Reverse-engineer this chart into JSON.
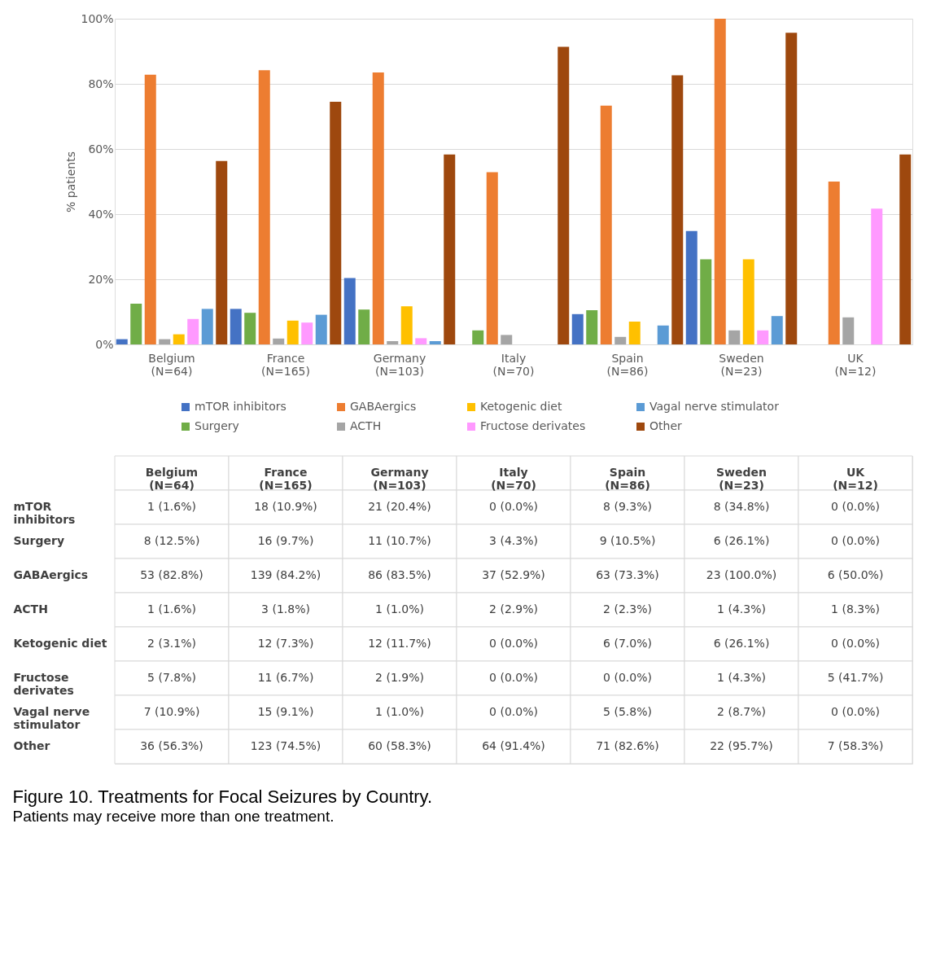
{
  "chart_data": {
    "type": "bar",
    "title": "Figure 10. Treatments for Focal Seizures by Country.",
    "subtitle": "Patients may receive more than one treatment.",
    "ylabel": "% patients",
    "categories": [
      "Belgium (N=64)",
      "France (N=165)",
      "Germany (N=103)",
      "Italy (N=70)",
      "Spain (N=86)",
      "Sweden (N=23)",
      "UK (N=12)"
    ],
    "series": [
      {
        "name": "mTOR inhibitors",
        "color": "#4472c4",
        "values": [
          1.6,
          10.9,
          20.4,
          0.0,
          9.3,
          34.8,
          0.0
        ],
        "value_labels": [
          "1 (1.6%)",
          "18 (10.9%)",
          "21 (20.4%)",
          "0 (0.0%)",
          "8 (9.3%)",
          "8 (34.8%)",
          "0 (0.0%)"
        ]
      },
      {
        "name": "Surgery",
        "color": "#70ad47",
        "values": [
          12.5,
          9.7,
          10.7,
          4.3,
          10.5,
          26.1,
          0.0
        ],
        "value_labels": [
          "8 (12.5%)",
          "16 (9.7%)",
          "11 (10.7%)",
          "3 (4.3%)",
          "9 (10.5%)",
          "6 (26.1%)",
          "0 (0.0%)"
        ]
      },
      {
        "name": "GABAergics",
        "color": "#ed7d31",
        "values": [
          82.8,
          84.2,
          83.5,
          52.9,
          73.3,
          100.0,
          50.0
        ],
        "value_labels": [
          "53 (82.8%)",
          "139 (84.2%)",
          "86 (83.5%)",
          "37 (52.9%)",
          "63 (73.3%)",
          "23 (100.0%)",
          "6 (50.0%)"
        ]
      },
      {
        "name": "ACTH",
        "color": "#a5a5a5",
        "values": [
          1.6,
          1.8,
          1.0,
          2.9,
          2.3,
          4.3,
          8.3
        ],
        "value_labels": [
          "1 (1.6%)",
          "3 (1.8%)",
          "1 (1.0%)",
          "2 (2.9%)",
          "2 (2.3%)",
          "1 (4.3%)",
          "1 (8.3%)"
        ]
      },
      {
        "name": "Ketogenic diet",
        "color": "#ffc000",
        "values": [
          3.1,
          7.3,
          11.7,
          0.0,
          7.0,
          26.1,
          0.0
        ],
        "value_labels": [
          "2 (3.1%)",
          "12 (7.3%)",
          "12 (11.7%)",
          "0 (0.0%)",
          "6 (7.0%)",
          "6 (26.1%)",
          "0 (0.0%)"
        ]
      },
      {
        "name": "Fructose derivates",
        "color": "#ff99ff",
        "values": [
          7.8,
          6.7,
          1.9,
          0.0,
          0.0,
          4.3,
          41.7
        ],
        "value_labels": [
          "5 (7.8%)",
          "11 (6.7%)",
          "2 (1.9%)",
          "0 (0.0%)",
          "0 (0.0%)",
          "1 (4.3%)",
          "5 (41.7%)"
        ]
      },
      {
        "name": "Vagal nerve stimulator",
        "color": "#5b9bd5",
        "values": [
          10.9,
          9.1,
          1.0,
          0.0,
          5.8,
          8.7,
          0.0
        ],
        "value_labels": [
          "7 (10.9%)",
          "15 (9.1%)",
          "1 (1.0%)",
          "0 (0.0%)",
          "5 (5.8%)",
          "2 (8.7%)",
          "0 (0.0%)"
        ]
      },
      {
        "name": "Other",
        "color": "#9e480e",
        "values": [
          56.3,
          74.5,
          58.3,
          91.4,
          82.6,
          95.7,
          58.3
        ],
        "value_labels": [
          "36 (56.3%)",
          "123 (74.5%)",
          "60 (58.3%)",
          "64 (91.4%)",
          "71 (82.6%)",
          "22 (95.7%)",
          "7 (58.3%)"
        ]
      }
    ],
    "ylim": [
      0,
      100
    ],
    "yticks": [
      {
        "value": 0,
        "label": "0%"
      },
      {
        "value": 20,
        "label": "20%"
      },
      {
        "value": 40,
        "label": "40%"
      },
      {
        "value": 60,
        "label": "60%"
      },
      {
        "value": 80,
        "label": "80%"
      },
      {
        "value": 100,
        "label": "100%"
      }
    ],
    "grid": "y",
    "legend": "bottom"
  }
}
